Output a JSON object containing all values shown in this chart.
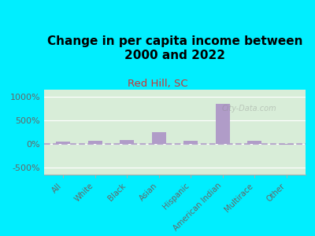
{
  "title": "Change in per capita income between\n2000 and 2022",
  "subtitle": "Red Hill, SC",
  "categories": [
    "All",
    "White",
    "Black",
    "Asian",
    "Hispanic",
    "American Indian",
    "Multirace",
    "Other"
  ],
  "values": [
    50,
    60,
    80,
    250,
    70,
    850,
    65,
    -10
  ],
  "bar_color": "#b09cc8",
  "background_fig": "#00eeff",
  "background_ax": "#d8edd8",
  "title_fontsize": 11,
  "subtitle_fontsize": 9.5,
  "subtitle_color": "#cc3333",
  "ylabel_ticks": [
    "-500%",
    "0%",
    "500%",
    "1000%"
  ],
  "ytick_values": [
    -500,
    0,
    500,
    1000
  ],
  "ylim": [
    -650,
    1150
  ],
  "watermark": "City-Data.com",
  "dashed_line_color": "#b09cc8",
  "tick_label_color": "#666666"
}
